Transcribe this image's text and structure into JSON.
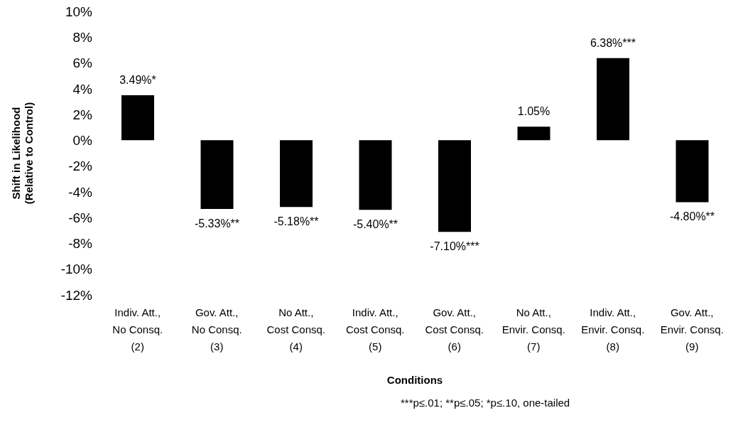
{
  "chart_data": {
    "type": "bar",
    "categories": [
      "Indiv. Att.,\nNo Consq.\n(2)",
      "Gov. Att.,\nNo Consq.\n(3)",
      "No Att.,\nCost Consq.\n(4)",
      "Indiv. Att.,\nCost Consq.\n(5)",
      "Gov. Att.,\nCost Consq.\n(6)",
      "No Att.,\nEnvir. Consq.\n(7)",
      "Indiv. Att.,\nEnvir. Consq.\n(8)",
      "Gov. Att.,\nEnvir. Consq.\n(9)"
    ],
    "values": [
      3.49,
      -5.33,
      -5.18,
      -5.4,
      -7.1,
      1.05,
      6.38,
      -4.8
    ],
    "value_labels": [
      "3.49%*",
      "-5.33%**",
      "-5.18%**",
      "-5.40%**",
      "-7.10%***",
      "1.05%",
      "6.38%***",
      "-4.80%**"
    ],
    "color": "#000000",
    "ylim": [
      -12,
      10
    ],
    "yticks": [
      {
        "value": -12,
        "label": "-12%"
      },
      {
        "value": -10,
        "label": "-10%"
      },
      {
        "value": -8,
        "label": "-8%"
      },
      {
        "value": -6,
        "label": "-6%"
      },
      {
        "value": -4,
        "label": "-4%"
      },
      {
        "value": -2,
        "label": "-2%"
      },
      {
        "value": 0,
        "label": "0%"
      },
      {
        "value": 2,
        "label": "2%"
      },
      {
        "value": 4,
        "label": "4%"
      },
      {
        "value": 6,
        "label": "6%"
      },
      {
        "value": 8,
        "label": "8%"
      },
      {
        "value": 10,
        "label": "10%"
      }
    ],
    "ylabel": "Shift in Likelihood\n(Relative to Control)",
    "xlabel": "Conditions",
    "annotations": [
      "***p≤.01; **p≤.05; *p≤.10, one-tailed"
    ],
    "grid": false,
    "legend": false
  }
}
